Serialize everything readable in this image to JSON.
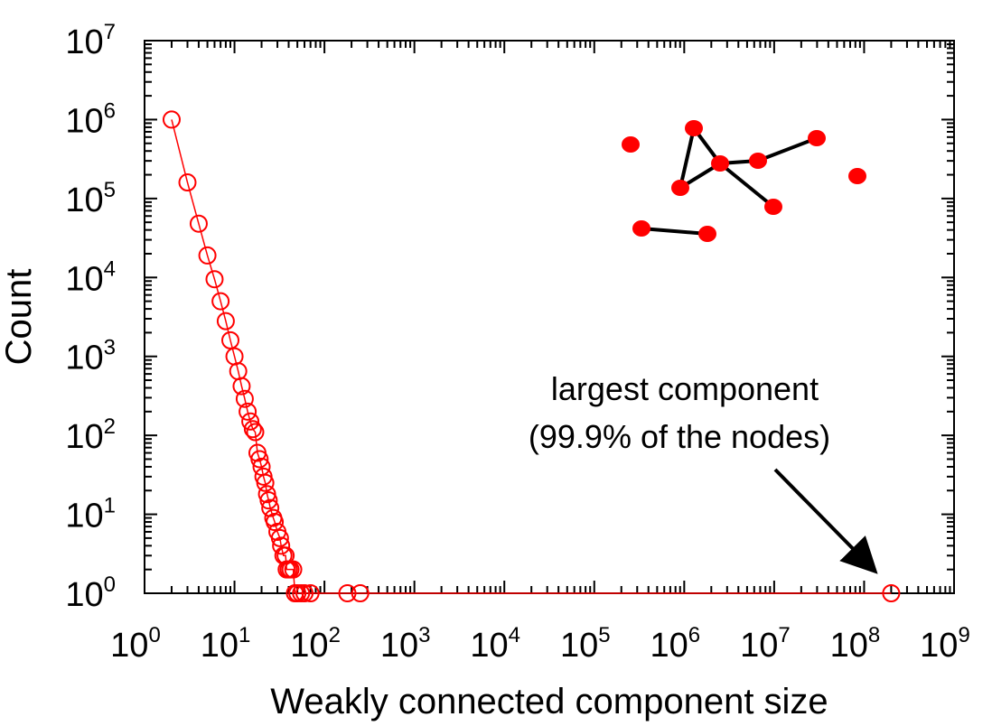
{
  "chart_data": {
    "type": "scatter",
    "xlabel": "Weakly connected component size",
    "ylabel": "Count",
    "xscale": "log",
    "yscale": "log",
    "xlim": [
      1,
      1000000000
    ],
    "ylim": [
      1,
      10000000
    ],
    "x_tick_exponents": [
      "0",
      "1",
      "2",
      "3",
      "4",
      "5",
      "6",
      "7",
      "8",
      "9"
    ],
    "y_tick_exponents": [
      "0",
      "1",
      "2",
      "3",
      "4",
      "5",
      "6",
      "7"
    ],
    "tick_base": "10",
    "grid": false,
    "series": [
      {
        "color": "#ff0000",
        "marker": "open-circle",
        "connected": true,
        "points": [
          [
            2,
            1000000
          ],
          [
            3,
            160000
          ],
          [
            4,
            48000
          ],
          [
            5,
            19000
          ],
          [
            6,
            9500
          ],
          [
            7,
            5000
          ],
          [
            8,
            2800
          ],
          [
            9,
            1600
          ],
          [
            10,
            1000
          ],
          [
            11,
            650
          ],
          [
            12,
            420
          ],
          [
            13,
            290
          ],
          [
            14,
            200
          ],
          [
            15,
            150
          ],
          [
            16,
            120
          ],
          [
            17,
            110
          ],
          [
            18,
            60
          ],
          [
            19,
            50
          ],
          [
            20,
            40
          ],
          [
            21,
            30
          ],
          [
            22,
            25
          ],
          [
            23,
            18
          ],
          [
            24,
            15
          ],
          [
            25,
            12
          ],
          [
            27,
            9
          ],
          [
            28,
            8
          ],
          [
            30,
            6
          ],
          [
            32,
            5
          ],
          [
            33,
            4
          ],
          [
            35,
            3
          ],
          [
            37,
            3
          ],
          [
            38,
            2
          ],
          [
            40,
            2
          ],
          [
            42,
            2
          ],
          [
            45,
            2
          ],
          [
            47,
            1
          ],
          [
            50,
            1
          ],
          [
            55,
            1
          ],
          [
            60,
            1
          ],
          [
            70,
            1
          ],
          [
            180,
            1
          ],
          [
            250,
            1
          ],
          [
            200000000,
            1
          ]
        ]
      }
    ],
    "annotations": [
      {
        "lines": [
          "largest component",
          "(99.9% of the nodes)"
        ],
        "points_to": [
          200000000,
          1
        ]
      }
    ]
  },
  "inset_graph": {
    "color": "#ff0000",
    "edge_color": "#000000",
    "node_count": 11
  }
}
